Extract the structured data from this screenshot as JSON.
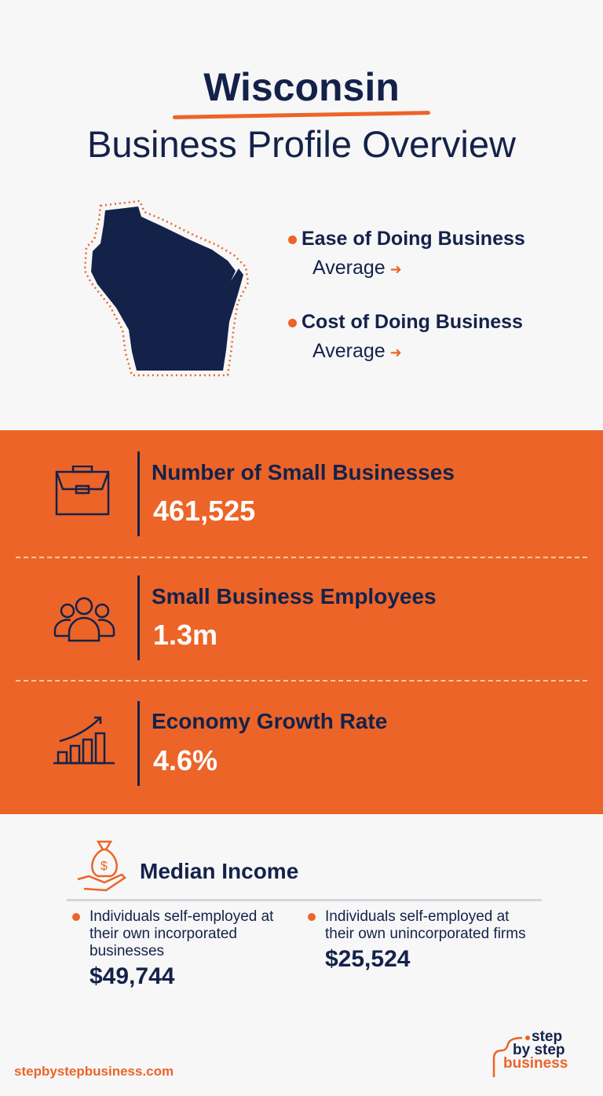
{
  "header": {
    "title": "Wisconsin",
    "subtitle": "Business Profile Overview"
  },
  "ratings": [
    {
      "label": "Ease of Doing Business",
      "value": "Average"
    },
    {
      "label": "Cost of Doing Business",
      "value": "Average"
    }
  ],
  "stats": [
    {
      "icon": "briefcase-icon",
      "label": "Number of Small Businesses",
      "value": "461,525"
    },
    {
      "icon": "people-icon",
      "label": "Small Business Employees",
      "value": "1.3m"
    },
    {
      "icon": "growth-chart-icon",
      "label": "Economy Growth Rate",
      "value": "4.6%"
    }
  ],
  "median": {
    "title": "Median Income",
    "items": [
      {
        "label": "Individuals self-employed at their own incorporated businesses",
        "value": "$49,744"
      },
      {
        "label": "Individuals self-employed at their own unincorporated firms",
        "value": "$25,524"
      }
    ]
  },
  "footer": {
    "url": "stepbystepbusiness.com",
    "logo": [
      "step",
      "by step",
      "business"
    ]
  },
  "colors": {
    "navy": "#14224a",
    "orange": "#ec6428",
    "background": "#f7f7f7"
  }
}
